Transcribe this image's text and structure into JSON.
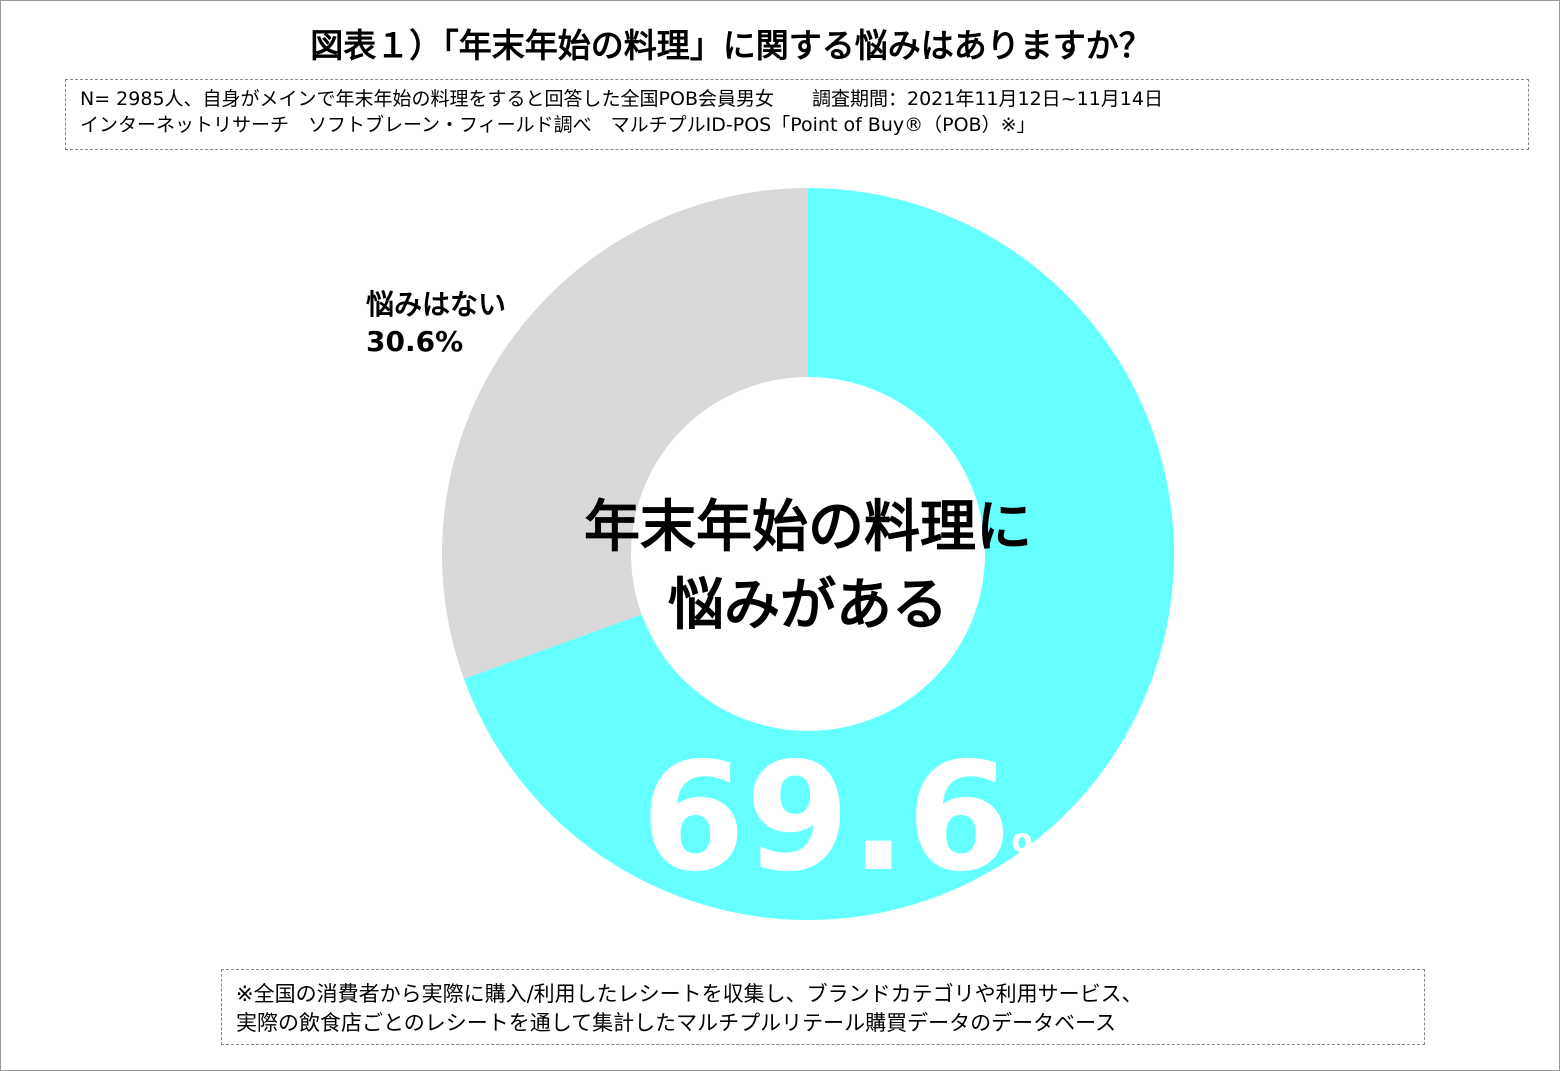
{
  "chart_data": {
    "type": "donut",
    "title": "図表１）「年末年始の料理」に関する悩みはありますか？",
    "subtitle": [
      "N= 2985人、自身がメインで年末年始の料理をすると回答した全国POB会員男女　　調査期間：2021年11月12日~11月14日",
      "インターネットリサーチ　ソフトブレーン・フィールド調べ　マルチプルID-POS「Point of Buy®（POB）※」"
    ],
    "categories": [
      "年末年始の料理に\n悩みがある",
      "悩みはない"
    ],
    "values": [
      69.6,
      30.6
    ],
    "value_labels": [
      "69.6%",
      "30.6%"
    ],
    "colors": [
      "#66ffff",
      "#d9d9d9"
    ],
    "footnote": [
      "※全国の消費者から実際に購入/利用したレシートを収集し、ブランドカテゴリや利用サービス、",
      "実際の飲食店ごとのレシートを通して集計したマルチプルリテール購買データのデータベース"
    ]
  }
}
